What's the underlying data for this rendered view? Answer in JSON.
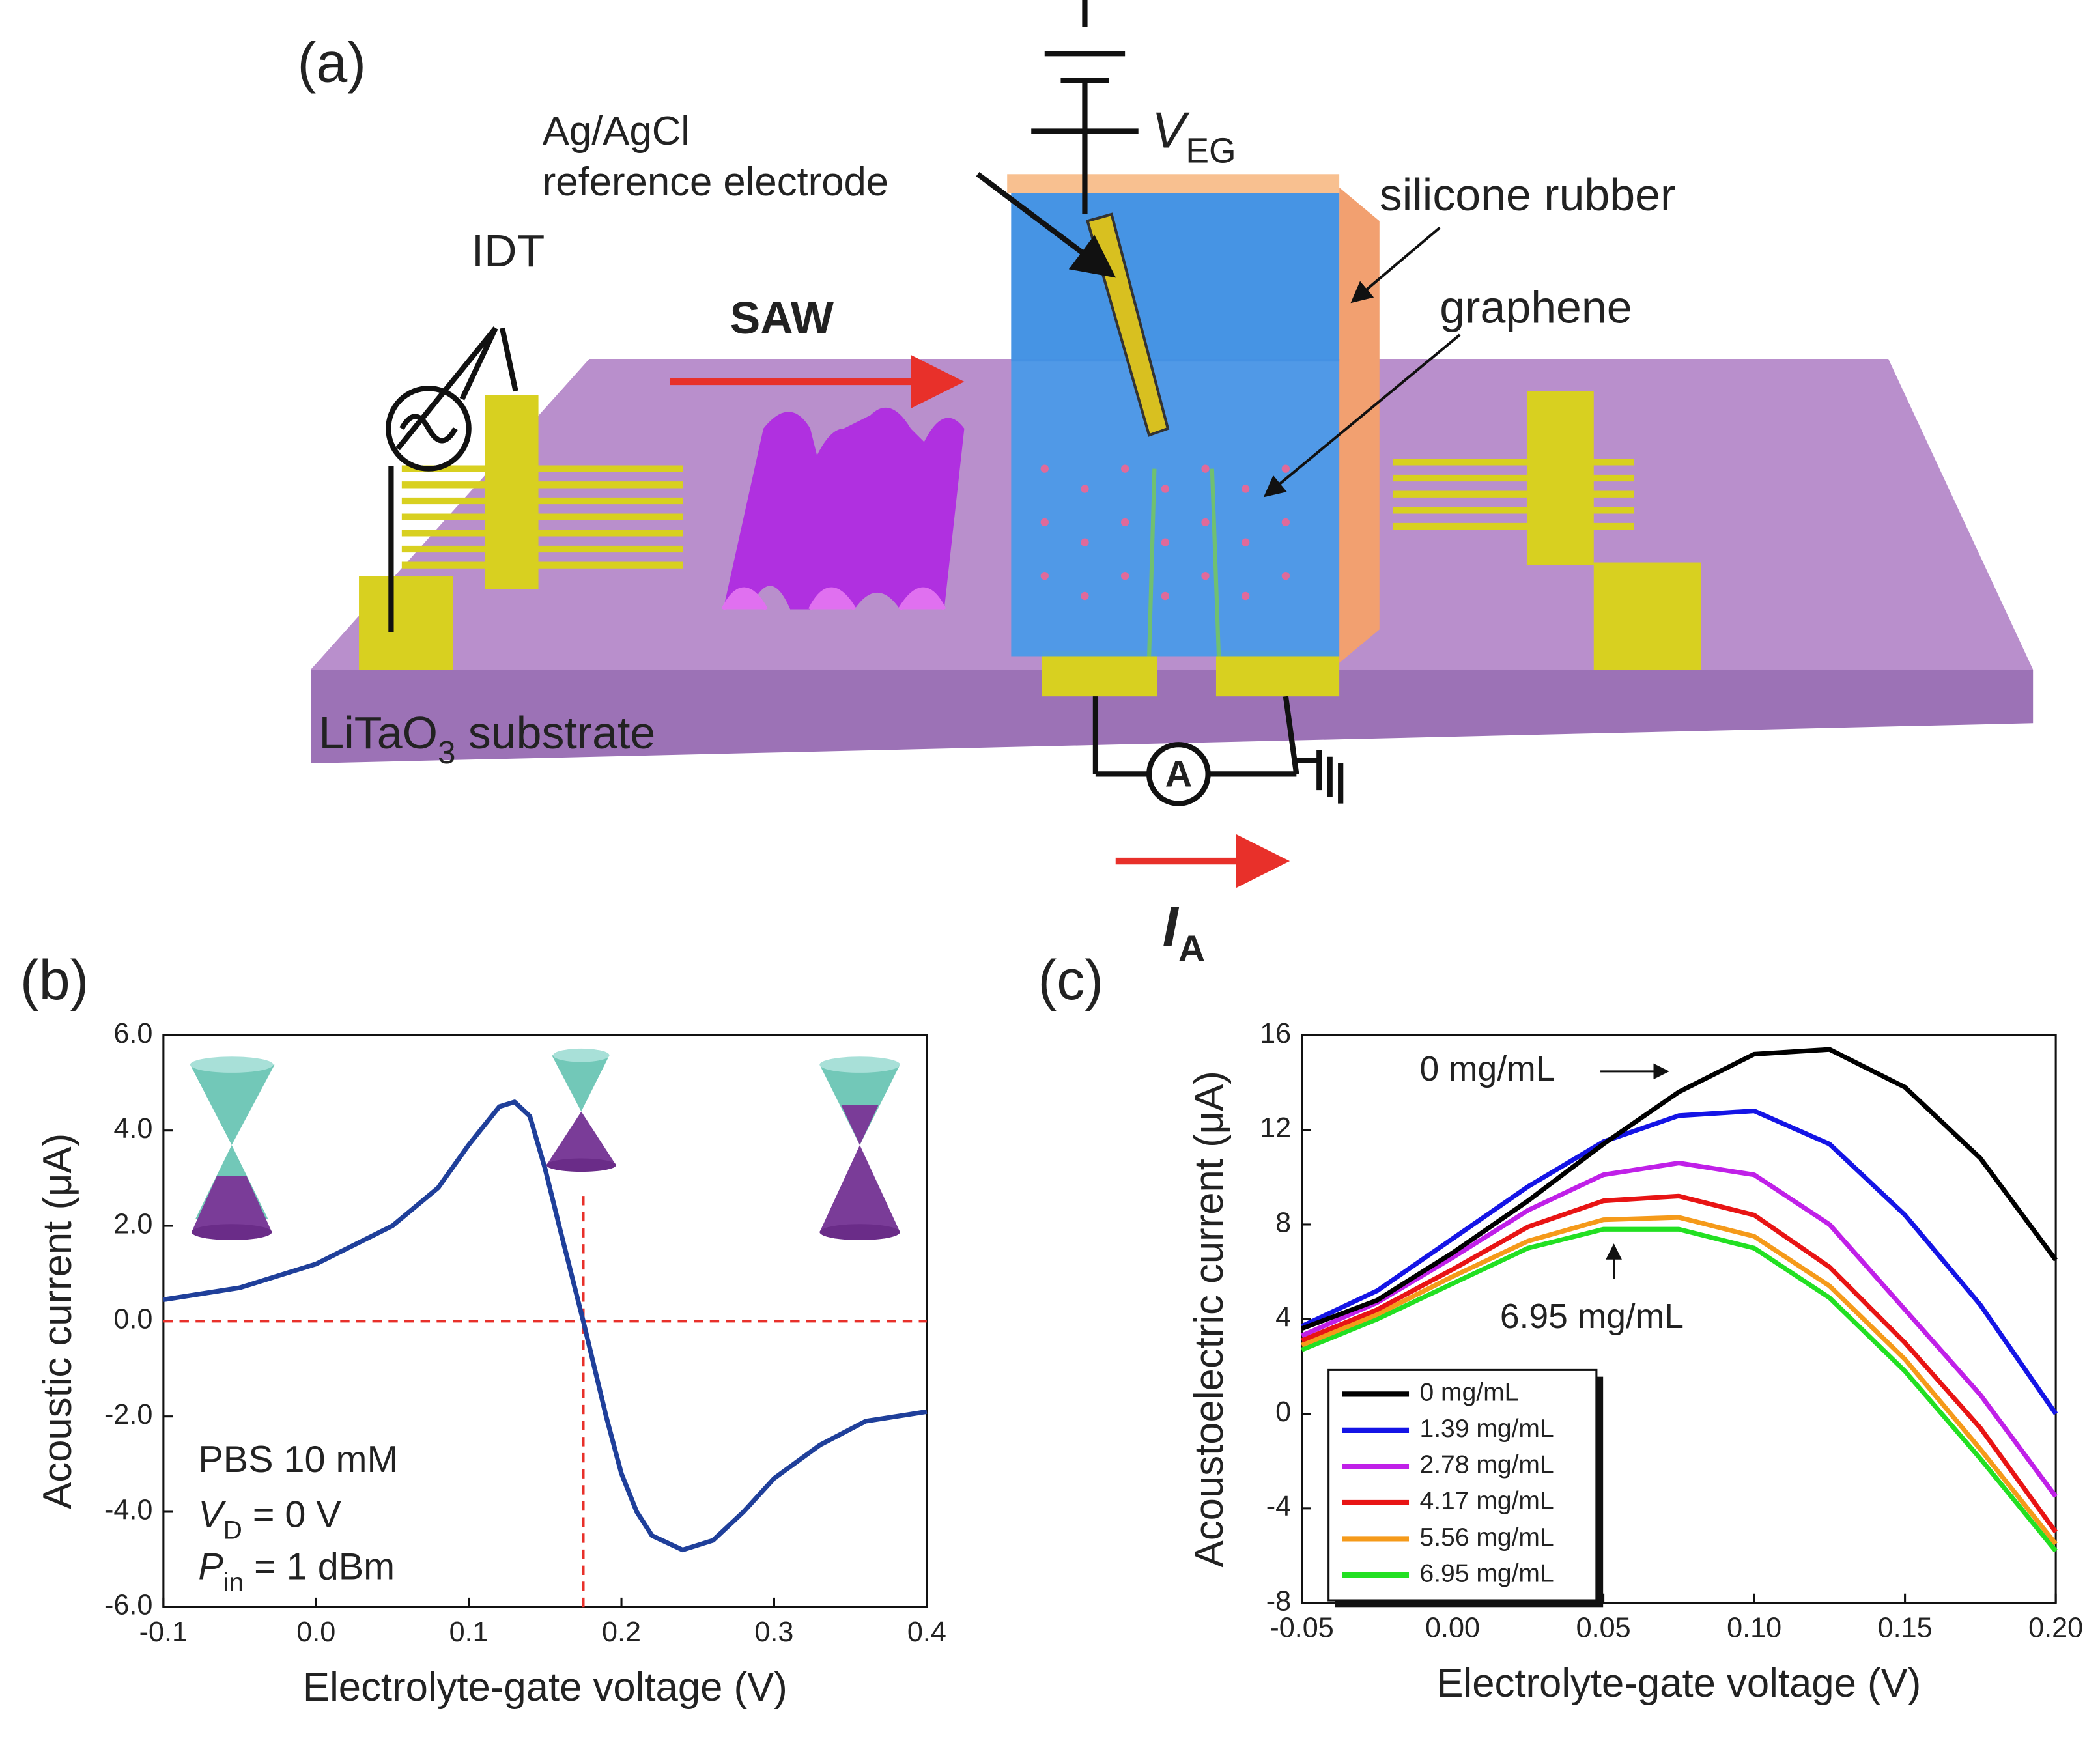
{
  "diagram": {
    "panel_label": "(a)",
    "reference_electrode": [
      "Ag/AgCl",
      "reference electrode"
    ],
    "gate_voltage": {
      "main": "V",
      "sub": "EG"
    },
    "silicone_rubber": "silicone rubber",
    "idt": "IDT",
    "saw": "SAW",
    "graphene": "graphene",
    "substrate": {
      "main": "LiTaO",
      "sub": "3",
      "rest": " substrate"
    },
    "ammeter": "A",
    "current": {
      "main": "I",
      "sub": "A"
    }
  },
  "chart_data": [
    {
      "type": "line",
      "panel_label": "(b)",
      "xlabel": "Electrolyte-gate voltage (V)",
      "ylabel": "Acoustic current (μA)",
      "xlim": [
        -0.1,
        0.4
      ],
      "ylim": [
        -6,
        6
      ],
      "xticks": [
        -0.1,
        {
          "value": 0,
          "label": "0.0"
        },
        0.1,
        0.2,
        0.3,
        0.4
      ],
      "yticks": [
        {
          "value": -6,
          "label": "-6.0"
        },
        {
          "value": -4,
          "label": "-4.0"
        },
        {
          "value": -2,
          "label": "-2.0"
        },
        {
          "value": 0,
          "label": "0.0"
        },
        {
          "value": 2,
          "label": "2.0"
        },
        {
          "value": 4,
          "label": "4.0"
        },
        {
          "value": 6,
          "label": "6.0"
        }
      ],
      "x": [
        -0.1,
        -0.05,
        0.0,
        0.05,
        0.08,
        0.1,
        0.12,
        0.13,
        0.14,
        0.15,
        0.16,
        0.175,
        0.19,
        0.2,
        0.21,
        0.22,
        0.24,
        0.26,
        0.28,
        0.3,
        0.33,
        0.36,
        0.4
      ],
      "series": [
        {
          "color": "#1f3f9a",
          "values": [
            0.45,
            0.7,
            1.2,
            2.0,
            2.8,
            3.7,
            4.5,
            4.6,
            4.3,
            3.2,
            1.9,
            0.0,
            -2.0,
            -3.2,
            -4.0,
            -4.5,
            -4.8,
            -4.6,
            -4.0,
            -3.3,
            -2.6,
            -2.1,
            -1.9
          ]
        }
      ],
      "reference_lines": {
        "x": 0.175,
        "y": 0,
        "color": "#e8302a"
      },
      "annotations": [
        {
          "main": "PBS 10 mM"
        },
        {
          "main": "V",
          "sub": "D",
          "rest": " = 0 V"
        },
        {
          "main": "P",
          "sub": "in",
          "rest": " = 1 dBm"
        }
      ]
    },
    {
      "type": "line",
      "panel_label": "(c)",
      "xlabel": "Electrolyte-gate voltage (V)",
      "ylabel": "Acoustoelectric current (μA)",
      "xlim": [
        -0.05,
        0.2
      ],
      "ylim": [
        -8,
        16
      ],
      "xticks": [
        -0.05,
        {
          "value": 0,
          "label": "0.00"
        },
        0.05,
        {
          "value": 0.1,
          "label": "0.10"
        },
        0.15,
        {
          "value": 0.2,
          "label": "0.20"
        }
      ],
      "yticks": [
        -8,
        -4,
        0,
        4,
        8,
        12,
        16
      ],
      "x": [
        -0.05,
        -0.025,
        0,
        0.025,
        0.05,
        0.075,
        0.1,
        0.125,
        0.15,
        0.175,
        0.2
      ],
      "legend": "lower left",
      "series": [
        {
          "name": "0 mg/mL",
          "color": "#000000",
          "values": [
            3.6,
            4.8,
            6.8,
            9.0,
            11.4,
            13.6,
            15.2,
            15.4,
            13.8,
            10.8,
            6.5
          ]
        },
        {
          "name": "1.39 mg/mL",
          "color": "#1414e6",
          "values": [
            3.7,
            5.2,
            7.4,
            9.6,
            11.5,
            12.6,
            12.8,
            11.4,
            8.4,
            4.6,
            0.0
          ]
        },
        {
          "name": "2.78 mg/mL",
          "color": "#c020e8",
          "values": [
            3.3,
            4.7,
            6.6,
            8.6,
            10.1,
            10.6,
            10.1,
            8.0,
            4.4,
            0.8,
            -3.5
          ]
        },
        {
          "name": "4.17 mg/mL",
          "color": "#e81414",
          "values": [
            3.1,
            4.4,
            6.1,
            7.9,
            9.0,
            9.2,
            8.4,
            6.2,
            3.0,
            -0.6,
            -5.0
          ]
        },
        {
          "name": "5.56 mg/mL",
          "color": "#f59a1a",
          "values": [
            2.9,
            4.2,
            5.8,
            7.3,
            8.2,
            8.3,
            7.5,
            5.4,
            2.3,
            -1.5,
            -5.5
          ]
        },
        {
          "name": "6.95 mg/mL",
          "color": "#22e022",
          "values": [
            2.7,
            4.0,
            5.5,
            7.0,
            7.8,
            7.8,
            7.0,
            4.9,
            1.8,
            -1.9,
            -5.8
          ]
        }
      ],
      "annotations": [
        {
          "main": "0 mg/mL"
        },
        {
          "main": "6.95 mg/mL"
        }
      ]
    }
  ]
}
